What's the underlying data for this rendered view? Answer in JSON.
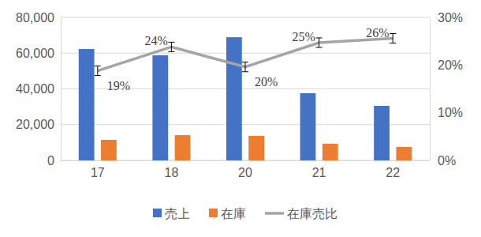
{
  "chart_data": {
    "type": "bar",
    "categories": [
      "17",
      "18",
      "20",
      "21",
      "22"
    ],
    "series": [
      {
        "name": "売上",
        "type": "bar",
        "color": "#4472c4",
        "values": [
          62300,
          58800,
          68900,
          37600,
          30500
        ]
      },
      {
        "name": "在庫",
        "type": "bar",
        "color": "#ed7d31",
        "values": [
          11500,
          14100,
          13700,
          9300,
          7500
        ]
      },
      {
        "name": "在庫売比",
        "type": "line",
        "axis": "y2",
        "color": "#a5a5a5",
        "marker": "none",
        "line_style": "solid",
        "values": [
          18.8,
          23.8,
          19.6,
          24.7,
          25.6
        ],
        "error": [
          1,
          1,
          1,
          1,
          1
        ],
        "data_labels": true,
        "value_labels": [
          "19%",
          "24%",
          "20%",
          "25%",
          "26%"
        ]
      }
    ],
    "ylim": [
      0,
      80000
    ],
    "yticks": [
      0,
      {
        "value": 20000,
        "label": "20,000"
      },
      {
        "value": 40000,
        "label": "40,000"
      },
      {
        "value": 60000,
        "label": "60,000"
      },
      {
        "value": 80000,
        "label": "80,000"
      }
    ],
    "y2lim": [
      0,
      30
    ],
    "y2ticks": [
      {
        "value": 0,
        "label": "0%"
      },
      {
        "value": 10,
        "label": "10%"
      },
      {
        "value": 20,
        "label": "20%"
      },
      {
        "value": 30,
        "label": "30%"
      }
    ],
    "grid": true,
    "legend": "bottom"
  }
}
